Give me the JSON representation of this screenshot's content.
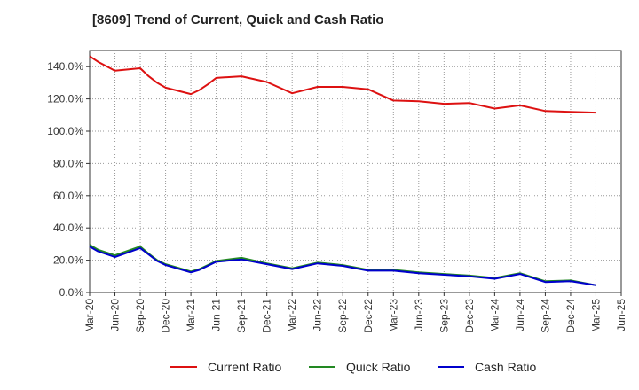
{
  "chart_data": {
    "type": "line",
    "title": "[8609]  Trend of Current, Quick and Cash Ratio",
    "xlabel": "",
    "ylabel": "",
    "ylim": [
      0,
      150
    ],
    "y_ticks": [
      0,
      20,
      40,
      60,
      80,
      100,
      120,
      140
    ],
    "y_tick_labels": [
      "0.0%",
      "20.0%",
      "40.0%",
      "60.0%",
      "80.0%",
      "100.0%",
      "120.0%",
      "140.0%"
    ],
    "x_ticks": [
      "Mar-20",
      "Jun-20",
      "Sep-20",
      "Dec-20",
      "Mar-21",
      "Jun-21",
      "Sep-21",
      "Dec-21",
      "Mar-22",
      "Jun-22",
      "Sep-22",
      "Dec-22",
      "Mar-23",
      "Jun-23",
      "Sep-23",
      "Dec-23",
      "Mar-24",
      "Jun-24",
      "Sep-24",
      "Dec-24",
      "Mar-25",
      "Jun-25"
    ],
    "grid": true,
    "legend_position": "bottom",
    "x": [
      "Mar-20",
      "Apr-20",
      "Jun-20",
      "Sep-20",
      "Oct-20",
      "Nov-20",
      "Dec-20",
      "Mar-21",
      "Apr-21",
      "May-21",
      "Jun-21",
      "Sep-21",
      "Dec-21",
      "Mar-22",
      "Jun-22",
      "Sep-22",
      "Dec-22",
      "Mar-23",
      "Jun-23",
      "Sep-23",
      "Dec-23",
      "Mar-24",
      "Jun-24",
      "Sep-24",
      "Dec-24",
      "Mar-25"
    ],
    "series": [
      {
        "name": "Current Ratio",
        "color": "#dd1111",
        "values": [
          146.5,
          143.0,
          137.5,
          139.0,
          134.0,
          130.0,
          127.0,
          123.0,
          125.5,
          129.0,
          133.0,
          134.0,
          130.5,
          123.5,
          127.5,
          127.5,
          126.0,
          119.0,
          118.5,
          117.0,
          117.5,
          114.0,
          116.0,
          112.5,
          112.0,
          111.5
        ]
      },
      {
        "name": "Quick Ratio",
        "color": "#228822",
        "values": [
          29.5,
          26.5,
          23.0,
          28.5,
          24.0,
          20.0,
          17.5,
          13.0,
          14.5,
          17.0,
          19.5,
          21.5,
          18.0,
          15.0,
          18.5,
          17.0,
          14.0,
          14.0,
          12.5,
          11.5,
          10.5,
          9.0,
          12.0,
          7.0,
          7.5,
          4.5
        ]
      },
      {
        "name": "Cash Ratio",
        "color": "#0000cc",
        "values": [
          28.5,
          25.5,
          22.0,
          27.5,
          23.5,
          19.5,
          17.0,
          12.5,
          14.0,
          16.5,
          19.0,
          20.5,
          17.5,
          14.5,
          18.0,
          16.5,
          13.5,
          13.5,
          12.0,
          11.0,
          10.0,
          8.5,
          11.5,
          6.5,
          7.0,
          4.5
        ]
      }
    ],
    "legend": [
      "Current Ratio",
      "Quick Ratio",
      "Cash Ratio"
    ]
  }
}
